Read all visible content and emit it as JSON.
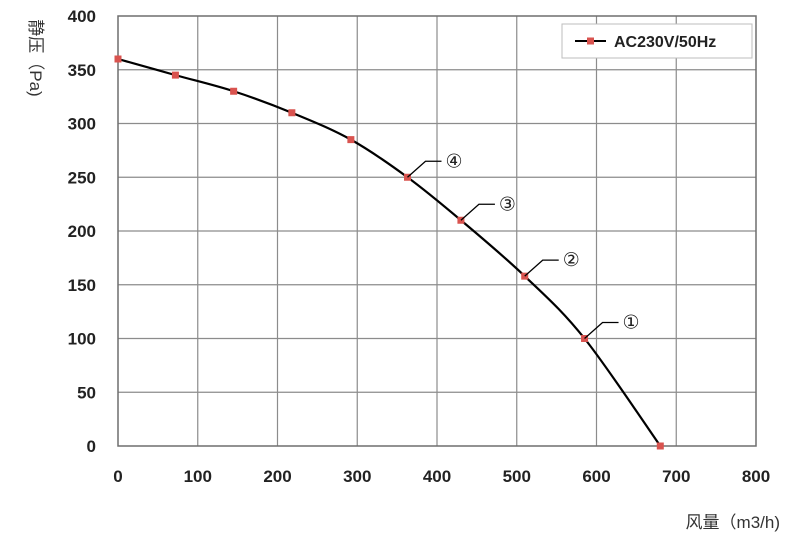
{
  "chart_data": {
    "type": "line",
    "title": "",
    "xlabel": "风量（m3/h)",
    "ylabel": "静压（Pa)",
    "xlim": [
      0,
      800
    ],
    "ylim": [
      0,
      400
    ],
    "x_ticks": [
      "0",
      "100",
      "200",
      "300",
      "400",
      "500",
      "600",
      "700",
      "800"
    ],
    "y_ticks": [
      "0",
      "50",
      "100",
      "150",
      "200",
      "250",
      "300",
      "350",
      "400"
    ],
    "grid": true,
    "legend_position": "top-right",
    "colors": {
      "line": "#000000",
      "marker": "#d9534f",
      "grid": "#8c8c8c"
    },
    "series": [
      {
        "name": "AC230V/50Hz",
        "x": [
          0,
          72,
          145,
          218,
          292,
          363,
          430,
          510,
          585,
          680
        ],
        "y": [
          360,
          345,
          330,
          310,
          285,
          250,
          210,
          158,
          100,
          0
        ]
      }
    ],
    "annotations": [
      {
        "text": "④",
        "x": 363,
        "y": 250
      },
      {
        "text": "③",
        "x": 430,
        "y": 210
      },
      {
        "text": "②",
        "x": 510,
        "y": 158
      },
      {
        "text": "①",
        "x": 585,
        "y": 100
      }
    ]
  }
}
